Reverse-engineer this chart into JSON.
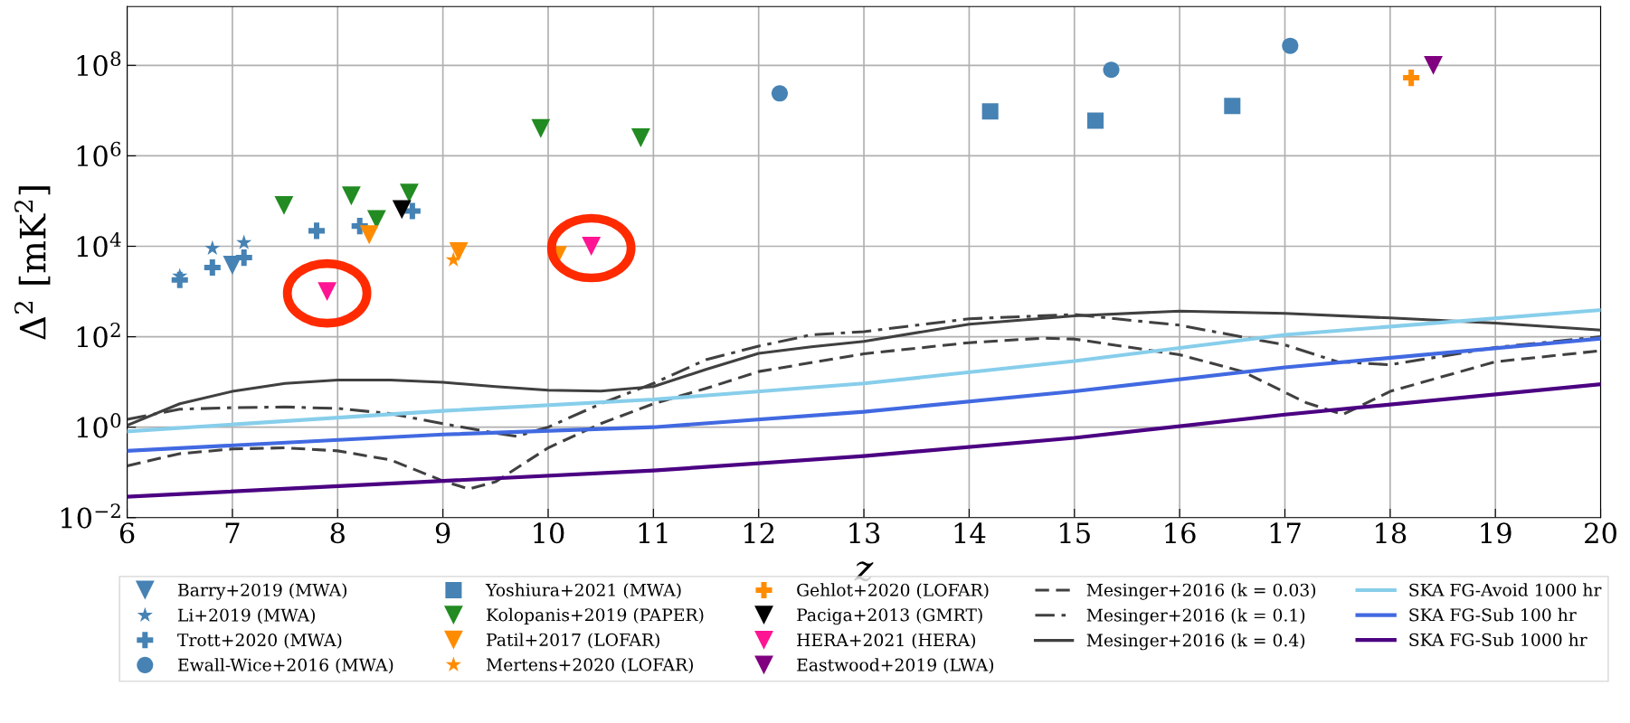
{
  "chart_data": {
    "type": "scatter",
    "xlabel": "z",
    "ylabel": "Δ$^{2}$ [mK$^{2}$]",
    "log": "y",
    "grid": true,
    "legend": "bottom",
    "xlim": [
      6,
      20
    ],
    "xticks": [
      6,
      7,
      8,
      9,
      10,
      11,
      12,
      13,
      14,
      15,
      16,
      17,
      18,
      19,
      20
    ],
    "ylim": [
      0.01,
      2000000000
    ],
    "yticks": [
      {
        "value": 0.01,
        "label": "10$^{−2}$"
      },
      {
        "value": 1,
        "label": "10$^{0}$"
      },
      {
        "value": 100,
        "label": "10$^{2}$"
      },
      {
        "value": 10000,
        "label": "10$^{4}$"
      },
      {
        "value": 1000000,
        "label": "10$^{6}$"
      },
      {
        "value": 100000000,
        "label": "10$^{8}$"
      }
    ],
    "series": [
      {
        "name": "Barry+2019 (MWA)",
        "marker": "triangle",
        "color": "#4682b4",
        "x": [
          7.0
        ],
        "values": [
          3800
        ]
      },
      {
        "name": "Li+2019 (MWA)",
        "marker": "star",
        "color": "#4682b4",
        "x": [
          6.5,
          6.81,
          7.11
        ],
        "values": [
          2200,
          9000,
          12000
        ]
      },
      {
        "name": "Trott+2020 (MWA)",
        "marker": "cross",
        "color": "#4682b4",
        "x": [
          6.5,
          6.81,
          7.11,
          7.8,
          8.21,
          8.71
        ],
        "values": [
          1800,
          3400,
          5600,
          22000,
          28000,
          60000
        ]
      },
      {
        "name": "Ewall-Wice+2016 (MWA)",
        "marker": "circle",
        "color": "#4682b4",
        "x": [
          12.2,
          15.35,
          17.05
        ],
        "values": [
          24000000,
          80000000,
          270000000
        ]
      },
      {
        "name": "Yoshiura+2021 (MWA)",
        "marker": "square",
        "color": "#4682b4",
        "x": [
          14.2,
          15.2,
          16.5
        ],
        "values": [
          9600000,
          6000000,
          12600000
        ]
      },
      {
        "name": "Kolopanis+2019 (PAPER)",
        "marker": "triangle",
        "color": "#228b22",
        "x": [
          7.49,
          8.13,
          8.37,
          8.68,
          9.93,
          10.88
        ],
        "values": [
          80000,
          130000,
          39000,
          150000,
          4000000,
          2500000
        ]
      },
      {
        "name": "Patil+2017 (LOFAR)",
        "marker": "triangle",
        "color": "#ff8c00",
        "x": [
          8.3,
          9.15,
          10.09
        ],
        "values": [
          18000,
          7600,
          6300
        ]
      },
      {
        "name": "Mertens+2020 (LOFAR)",
        "marker": "star",
        "color": "#ff8c00",
        "x": [
          9.1
        ],
        "values": [
          5000
        ]
      },
      {
        "name": "Gehlot+2020 (LOFAR)",
        "marker": "cross",
        "color": "#ff8c00",
        "x": [
          18.2
        ],
        "values": [
          53000000
        ]
      },
      {
        "name": "Paciga+2013 (GMRT)",
        "marker": "triangle",
        "color": "#000000",
        "x": [
          8.61
        ],
        "values": [
          65000
        ]
      },
      {
        "name": "HERA+2021 (HERA)",
        "marker": "triangle",
        "color": "#ff1493",
        "x": [
          7.9,
          10.41
        ],
        "values": [
          1000,
          10000
        ]
      },
      {
        "name": "Eastwood+2019 (LWA)",
        "marker": "triangle",
        "color": "#800080",
        "x": [
          18.41
        ],
        "values": [
          100000000
        ]
      },
      {
        "name": "Mesinger+2016 (k = 0.03)",
        "type": "line",
        "line_style": "dashed",
        "color": "#404040",
        "x": [
          6,
          6.5,
          7,
          7.5,
          8,
          8.5,
          9,
          9.25,
          9.5,
          10,
          10.5,
          11,
          11.5,
          12,
          13,
          14,
          14.7,
          15,
          16,
          16.6,
          17.2,
          17.55,
          18,
          19,
          20
        ],
        "values": [
          0.14,
          0.26,
          0.33,
          0.35,
          0.3,
          0.19,
          0.065,
          0.043,
          0.062,
          0.35,
          1.2,
          3.3,
          7.2,
          17,
          42,
          74,
          93,
          89,
          40,
          17,
          3.5,
          1.9,
          6.2,
          28,
          49
        ]
      },
      {
        "name": "Mesinger+2016 (k = 0.1)",
        "type": "line",
        "line_style": "dashdot",
        "color": "#404040",
        "x": [
          6,
          6.5,
          7,
          7.5,
          8,
          8.5,
          9,
          9.5,
          9.7,
          10,
          10.5,
          11,
          11.5,
          12,
          12.5,
          13,
          14,
          15,
          16,
          17,
          17.5,
          18,
          19,
          20
        ],
        "values": [
          1.5,
          2.5,
          2.7,
          2.8,
          2.6,
          2.0,
          1.2,
          0.74,
          0.63,
          1.0,
          3.3,
          9.3,
          31,
          62,
          110,
          130,
          250,
          310,
          180,
          66,
          28,
          24,
          58,
          100
        ]
      },
      {
        "name": "Mesinger+2016 (k = 0.4)",
        "type": "line",
        "line_style": "solid",
        "color": "#404040",
        "x": [
          6,
          6.5,
          7,
          7.5,
          8,
          8.5,
          9,
          9.5,
          10,
          10.5,
          11,
          11.5,
          12,
          12.5,
          13,
          14,
          15,
          16,
          17,
          18,
          19,
          20
        ],
        "values": [
          1.1,
          3.3,
          6.2,
          9.3,
          11,
          11,
          9.8,
          7.9,
          6.6,
          6.3,
          7.9,
          19,
          43,
          60,
          79,
          190,
          290,
          370,
          330,
          260,
          200,
          140
        ]
      },
      {
        "name": "SKA FG-Avoid 1000 hr",
        "type": "line",
        "line_style": "solid",
        "color": "#87ceeb",
        "x": [
          6,
          9,
          11,
          13,
          15,
          17,
          20
        ],
        "values": [
          0.81,
          2.3,
          4.1,
          9.3,
          29,
          110,
          390
        ]
      },
      {
        "name": "SKA FG-Sub 100 hr",
        "type": "line",
        "line_style": "solid",
        "color": "#4169e1",
        "x": [
          6,
          9,
          11,
          13,
          15,
          17,
          20
        ],
        "values": [
          0.3,
          0.69,
          1.0,
          2.2,
          6.2,
          21,
          91
        ]
      },
      {
        "name": "SKA FG-Sub 1000 hr",
        "type": "line",
        "line_style": "solid",
        "color": "#4b0082",
        "x": [
          6,
          9,
          11,
          13,
          15,
          17,
          20
        ],
        "values": [
          0.029,
          0.065,
          0.11,
          0.23,
          0.58,
          1.9,
          8.9
        ]
      }
    ]
  }
}
